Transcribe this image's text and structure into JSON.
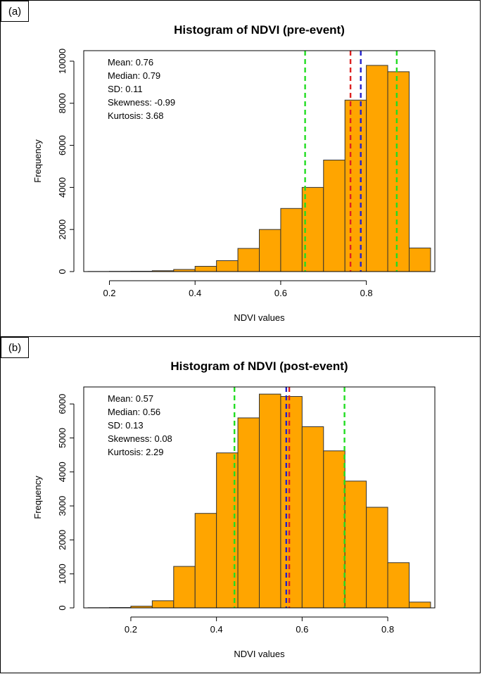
{
  "chart_data": [
    {
      "type": "bar",
      "panel_label": "(a)",
      "title": "Histogram of NDVI (pre-event)",
      "xlabel": "NDVI values",
      "ylabel": "Frequency",
      "xlim": [
        0.14,
        0.96
      ],
      "ylim": [
        0,
        10500
      ],
      "bin_width": 0.05,
      "bin_starts": [
        0.15,
        0.2,
        0.25,
        0.3,
        0.35,
        0.4,
        0.45,
        0.5,
        0.55,
        0.6,
        0.65,
        0.7,
        0.75,
        0.8,
        0.85,
        0.9
      ],
      "values": [
        5,
        10,
        15,
        40,
        100,
        250,
        520,
        1100,
        2000,
        3000,
        4000,
        5300,
        8150,
        9800,
        9500,
        1120
      ],
      "x_ticks": [
        "0.2",
        "0.4",
        "0.6",
        "0.8"
      ],
      "x_tick_values": [
        0.2,
        0.4,
        0.6,
        0.8
      ],
      "y_ticks": [
        "0",
        "2000",
        "4000",
        "6000",
        "8000",
        "10000"
      ],
      "y_tick_values": [
        0,
        2000,
        4000,
        6000,
        8000,
        10000
      ],
      "vlines": [
        {
          "name": "sd-lower",
          "x": 0.657,
          "color": "#22dd22"
        },
        {
          "name": "mean",
          "x": 0.763,
          "color": "#dd2222"
        },
        {
          "name": "median",
          "x": 0.787,
          "color": "#2222cc"
        },
        {
          "name": "sd-upper",
          "x": 0.871,
          "color": "#22dd22"
        }
      ],
      "stats": [
        "Mean: 0.76",
        "Median: 0.79",
        "SD: 0.11",
        "Skewness: -0.99",
        "Kurtosis: 3.68"
      ],
      "bar_color": "#ffa500"
    },
    {
      "type": "bar",
      "panel_label": "(b)",
      "title": "Histogram of NDVI (post-event)",
      "xlabel": "NDVI values",
      "ylabel": "Frequency",
      "xlim": [
        0.09,
        0.91
      ],
      "ylim": [
        0,
        6500
      ],
      "bin_width": 0.05,
      "bin_starts": [
        0.1,
        0.15,
        0.2,
        0.25,
        0.3,
        0.35,
        0.4,
        0.45,
        0.5,
        0.55,
        0.6,
        0.65,
        0.7,
        0.75,
        0.8,
        0.85
      ],
      "values": [
        5,
        10,
        50,
        210,
        1220,
        2780,
        4560,
        5590,
        6290,
        6220,
        5330,
        4620,
        3730,
        2960,
        1330,
        170
      ],
      "x_ticks": [
        "0.2",
        "0.4",
        "0.6",
        "0.8"
      ],
      "x_tick_values": [
        0.2,
        0.4,
        0.6,
        0.8
      ],
      "y_ticks": [
        "0",
        "1000",
        "2000",
        "3000",
        "4000",
        "5000",
        "6000"
      ],
      "y_tick_values": [
        0,
        1000,
        2000,
        3000,
        4000,
        5000,
        6000
      ],
      "vlines": [
        {
          "name": "sd-lower",
          "x": 0.442,
          "color": "#22dd22"
        },
        {
          "name": "median",
          "x": 0.563,
          "color": "#2222cc"
        },
        {
          "name": "mean",
          "x": 0.57,
          "color": "#dd2222"
        },
        {
          "name": "sd-upper",
          "x": 0.699,
          "color": "#22dd22"
        }
      ],
      "stats": [
        "Mean: 0.57",
        "Median: 0.56",
        "SD: 0.13",
        "Skewness: 0.08",
        "Kurtosis: 2.29"
      ],
      "bar_color": "#ffa500"
    }
  ]
}
